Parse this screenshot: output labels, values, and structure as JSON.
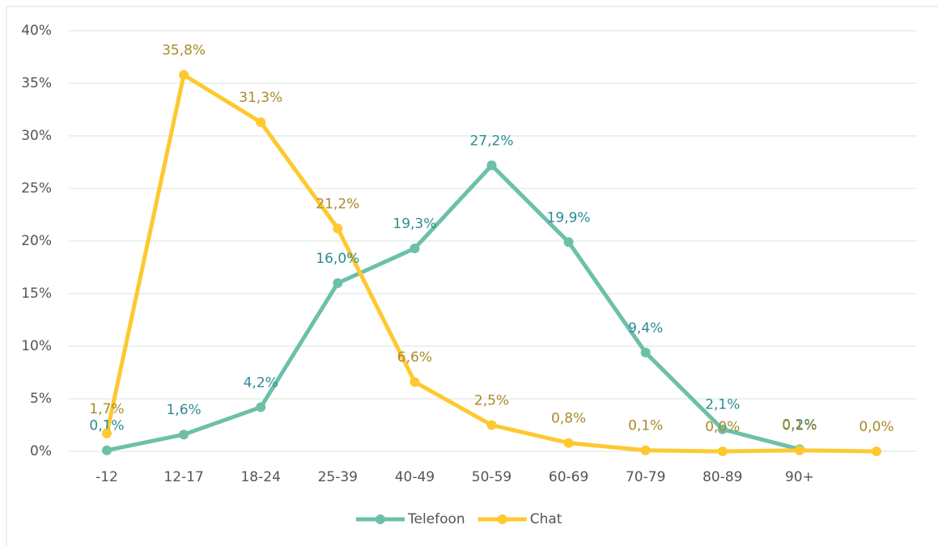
{
  "chart_data": {
    "type": "line",
    "categories": [
      "-12",
      "12-17",
      "18-24",
      "25-39",
      "40-49",
      "50-59",
      "60-69",
      "70-79",
      "80-89",
      "90+",
      null
    ],
    "series": [
      {
        "name": "Telefoon",
        "color": "#6cc0a9",
        "label_color": "#2b8b93",
        "values": [
          0.1,
          1.6,
          4.2,
          16.0,
          19.3,
          27.2,
          19.9,
          9.4,
          2.1,
          0.2,
          null
        ],
        "value_labels": [
          "0,1%",
          "1,6%",
          "4,2%",
          "16,0%",
          "19,3%",
          "27,2%",
          "19,9%",
          "9,4%",
          "2,1%",
          "0,2%",
          null
        ]
      },
      {
        "name": "Chat",
        "color": "#fdc92f",
        "label_color": "#a98a2a",
        "values": [
          1.7,
          35.8,
          31.3,
          21.2,
          6.6,
          2.5,
          0.8,
          0.1,
          0.0,
          0.1,
          0.0
        ],
        "value_labels": [
          "1,7%",
          "35,8%",
          "31,3%",
          "21,2%",
          "6,6%",
          "2,5%",
          "0,8%",
          "0,1%",
          "0,0%",
          "0,1%",
          "0,0%"
        ]
      }
    ],
    "ylim": [
      0,
      40
    ],
    "yticks": [
      {
        "value": 0,
        "label": "0%"
      },
      {
        "value": 5,
        "label": "5%"
      },
      {
        "value": 10,
        "label": "10%"
      },
      {
        "value": 15,
        "label": "15%"
      },
      {
        "value": 20,
        "label": "20%"
      },
      {
        "value": 25,
        "label": "25%"
      },
      {
        "value": 30,
        "label": "30%"
      },
      {
        "value": 35,
        "label": "35%"
      },
      {
        "value": 40,
        "label": "40%"
      }
    ],
    "grid": true,
    "legend": "bottom"
  }
}
